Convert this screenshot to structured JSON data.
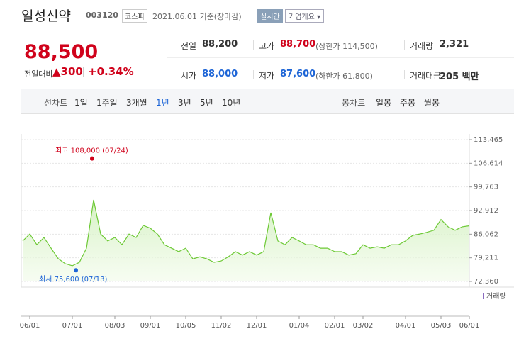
{
  "header": {
    "name": "일성신약",
    "code": "003120",
    "market": "코스피",
    "date": "2021.06.01 기준(장마감)",
    "realtime": "실시간",
    "company_info": "기업개요"
  },
  "price": {
    "current": "88,500",
    "change_label": "전일대비",
    "change": "300",
    "percent": "+0.34%"
  },
  "info": [
    {
      "label": "전일",
      "value": "88,200"
    },
    {
      "label": "고가",
      "value": "88,700",
      "extra": "(상한가 114,500)"
    },
    {
      "label": "거래량",
      "value": "2,321"
    },
    {
      "label": "시가",
      "value": "88,000"
    },
    {
      "label": "저가",
      "value": "87,600",
      "extra": "(하한가 61,800)"
    },
    {
      "label": "거래대금",
      "value": "205 백만"
    }
  ],
  "tabs": {
    "line_label": "선차트",
    "periods": [
      "1일",
      "1주일",
      "3개월",
      "1년",
      "3년",
      "5년",
      "10년"
    ],
    "candle_label": "봉차트",
    "candle_periods": [
      "일봉",
      "주봉",
      "월봉"
    ]
  },
  "chart_data": {
    "type": "line",
    "color": "#6dc935",
    "categories": [
      null,
      "06/01",
      null,
      null,
      null,
      null,
      null,
      "07/01",
      null,
      null,
      null,
      null,
      null,
      "08/03",
      null,
      null,
      null,
      null,
      "09/01",
      null,
      null,
      null,
      null,
      "10/05",
      null,
      null,
      null,
      null,
      "11/02",
      null,
      null,
      null,
      null,
      "12/01",
      null,
      null,
      null,
      null,
      null,
      "01/04",
      null,
      null,
      null,
      null,
      "02/01",
      null,
      null,
      null,
      "03/02",
      null,
      null,
      null,
      null,
      null,
      "04/01",
      null,
      null,
      null,
      null,
      "05/03",
      null,
      null,
      null,
      "06/01"
    ],
    "values": [
      84100,
      86100,
      83000,
      85100,
      82000,
      79000,
      77500,
      76900,
      77900,
      82000,
      96000,
      86100,
      84100,
      85100,
      83000,
      86100,
      85100,
      88600,
      87800,
      86100,
      83000,
      82000,
      81000,
      82000,
      78900,
      79500,
      78900,
      77900,
      78300,
      79500,
      81000,
      80000,
      81000,
      80000,
      81000,
      92300,
      84100,
      83000,
      85100,
      84100,
      83000,
      83000,
      82000,
      82000,
      81000,
      81000,
      80000,
      80400,
      83000,
      82000,
      82400,
      82000,
      83000,
      83000,
      84100,
      85700,
      86100,
      86600,
      87200,
      90300,
      88200,
      87200,
      88200,
      88500
    ],
    "ylim": [
      72360,
      113465
    ],
    "yticks": [
      {
        "value": 72360,
        "label": "72,360"
      },
      {
        "value": 79211,
        "label": "79,211"
      },
      {
        "value": 86062,
        "label": "86,062"
      },
      {
        "value": 92912,
        "label": "92,912"
      },
      {
        "value": 99763,
        "label": "99,763"
      },
      {
        "value": 106614,
        "label": "106,614"
      },
      {
        "value": 113465,
        "label": "113,465"
      }
    ],
    "grid": true,
    "annotations": [
      {
        "label": "최고",
        "value": 108000,
        "value_label": "108,000",
        "date": "(07/24)",
        "color": "#d0021b"
      },
      {
        "label": "최저",
        "value": 75600,
        "value_label": "75,600",
        "date": "(07/13)",
        "color": "#1c64d6"
      }
    ],
    "volume_label": "거래량"
  }
}
